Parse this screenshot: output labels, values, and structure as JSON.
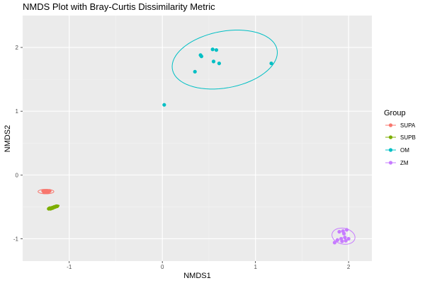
{
  "chart_data": {
    "type": "scatter",
    "title": "NMDS Plot with Bray-Curtis Dissimilarity Metric",
    "xlabel": "NMDS1",
    "ylabel": "NMDS2",
    "xlim": [
      -1.5,
      2.25
    ],
    "ylim": [
      -1.35,
      2.5
    ],
    "xticks": [
      -1,
      0,
      1,
      2
    ],
    "xtick_labels": [
      "-1",
      "0",
      "1",
      "2"
    ],
    "yticks": [
      -1,
      0,
      1,
      2
    ],
    "ytick_labels": [
      "-1",
      "0",
      "1",
      "2"
    ],
    "grid": true,
    "legend": {
      "title": "Group",
      "placement": "right"
    },
    "series": [
      {
        "name": "SUPA",
        "color": "#F8766D",
        "points": [
          [
            -1.28,
            -0.25
          ],
          [
            -1.27,
            -0.27
          ],
          [
            -1.26,
            -0.25
          ],
          [
            -1.25,
            -0.26
          ],
          [
            -1.24,
            -0.25
          ],
          [
            -1.23,
            -0.27
          ],
          [
            -1.22,
            -0.26
          ],
          [
            -1.21,
            -0.25
          ],
          [
            -1.26,
            -0.27
          ],
          [
            -1.24,
            -0.27
          ]
        ],
        "ellipse": {
          "cx": -1.25,
          "cy": -0.26,
          "rx": 0.085,
          "ry": 0.035,
          "angle": 0
        }
      },
      {
        "name": "SUPB",
        "color": "#7CAE00",
        "points": [
          [
            -1.22,
            -0.53
          ],
          [
            -1.21,
            -0.52
          ],
          [
            -1.2,
            -0.53
          ],
          [
            -1.19,
            -0.52
          ],
          [
            -1.18,
            -0.51
          ],
          [
            -1.17,
            -0.51
          ],
          [
            -1.16,
            -0.5
          ],
          [
            -1.15,
            -0.5
          ],
          [
            -1.14,
            -0.49
          ],
          [
            -1.13,
            -0.49
          ],
          [
            -1.2,
            -0.52
          ],
          [
            -1.18,
            -0.52
          ]
        ],
        "ellipse": {
          "cx": -1.17,
          "cy": -0.51,
          "rx": 0.07,
          "ry": 0.022,
          "angle": 28
        }
      },
      {
        "name": "OM",
        "color": "#00BFC4",
        "points": [
          [
            0.02,
            1.1
          ],
          [
            0.35,
            1.62
          ],
          [
            0.41,
            1.88
          ],
          [
            0.42,
            1.86
          ],
          [
            0.54,
            1.97
          ],
          [
            0.55,
            1.78
          ],
          [
            0.58,
            1.96
          ],
          [
            0.61,
            1.75
          ],
          [
            1.17,
            1.75
          ]
        ],
        "ellipse": {
          "cx": 0.67,
          "cy": 1.81,
          "rx": 0.59,
          "ry": 0.43,
          "angle": 25
        }
      },
      {
        "name": "ZM",
        "color": "#C77CFF",
        "points": [
          [
            1.85,
            -1.06
          ],
          [
            1.88,
            -1.02
          ],
          [
            1.9,
            -0.89
          ],
          [
            1.92,
            -1.0
          ],
          [
            1.93,
            -1.04
          ],
          [
            1.95,
            -0.92
          ],
          [
            1.96,
            -0.98
          ],
          [
            1.97,
            -1.03
          ],
          [
            1.98,
            -0.86
          ],
          [
            2.0,
            -1.0
          ],
          [
            1.94,
            -0.88
          ]
        ],
        "ellipse": {
          "cx": 1.945,
          "cy": -0.96,
          "rx": 0.135,
          "ry": 0.115,
          "angle": -50
        }
      }
    ]
  }
}
